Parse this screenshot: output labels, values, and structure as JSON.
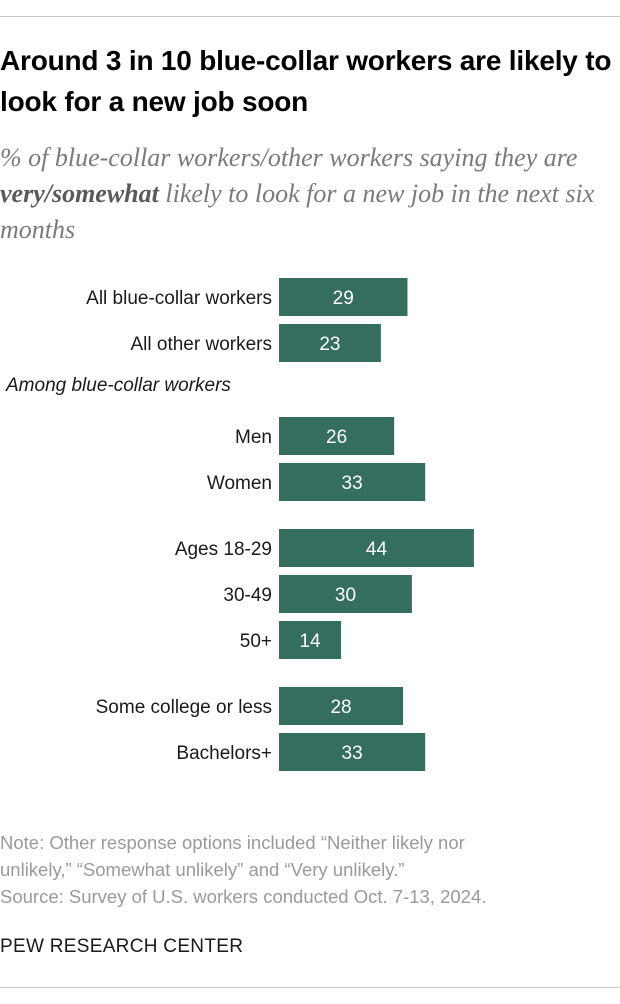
{
  "title": "Around 3 in 10 blue-collar workers are likely to look for a new job soon",
  "subtitle": {
    "part1": "% of blue-collar workers/other workers saying they are ",
    "emphasis": "very/somewhat",
    "part2": " likely to look for a new job in the next six months"
  },
  "chart_data": {
    "type": "bar",
    "orientation": "horizontal",
    "bar_color": "#356e5f",
    "value_label_color": "#ffffff",
    "section_label": "Among blue-collar workers",
    "categories": [
      "All blue-collar workers",
      "All other workers",
      "Men",
      "Women",
      "Ages 18-29",
      "30-49",
      "50+",
      "Some college or less",
      "Bachelors+"
    ],
    "values": [
      29,
      23,
      26,
      33,
      44,
      30,
      14,
      28,
      33
    ],
    "groups": [
      {
        "section_label": "",
        "rows": [
          0,
          1
        ]
      },
      {
        "section_label": "Among blue-collar workers",
        "rows": [
          2,
          3
        ]
      },
      {
        "section_label": "",
        "rows": [
          4,
          5,
          6
        ]
      },
      {
        "section_label": "",
        "rows": [
          7,
          8
        ]
      }
    ],
    "xlim": [
      0,
      44
    ]
  },
  "notes": [
    "Note: Other response options included “Neither likely nor",
    "unlikely,” “Somewhat unlikely” and “Very unlikely.”",
    "Source: Survey of U.S. workers conducted Oct. 7-13, 2024."
  ],
  "brand": "PEW RESEARCH CENTER"
}
